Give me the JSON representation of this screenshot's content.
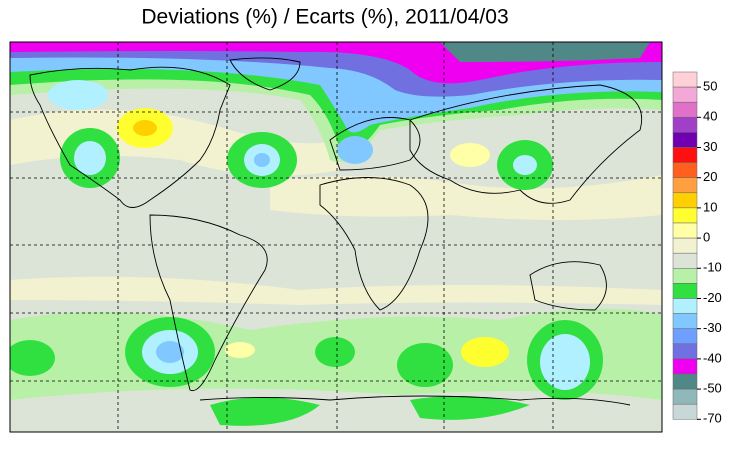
{
  "header": {
    "title": "Deviations (%) / Ecarts (%), 2011/04/03"
  },
  "colorbar": {
    "colors": [
      "#ffd0d8",
      "#f4a8d8",
      "#e070c8",
      "#a040c8",
      "#7000b0",
      "#ff1010",
      "#ff6020",
      "#ffa040",
      "#ffd000",
      "#ffff30",
      "#ffffa8",
      "#f2f2d0",
      "#dce4d8",
      "#b8f0a8",
      "#30e040",
      "#b0f0ff",
      "#80c8ff",
      "#70a0ff",
      "#7070e0",
      "#f000f0",
      "#508888",
      "#90b8b8",
      "#c8d8d8"
    ],
    "ticks": [
      50,
      40,
      30,
      20,
      10,
      0,
      -10,
      -20,
      -30,
      -40,
      -50,
      -70
    ]
  }
}
